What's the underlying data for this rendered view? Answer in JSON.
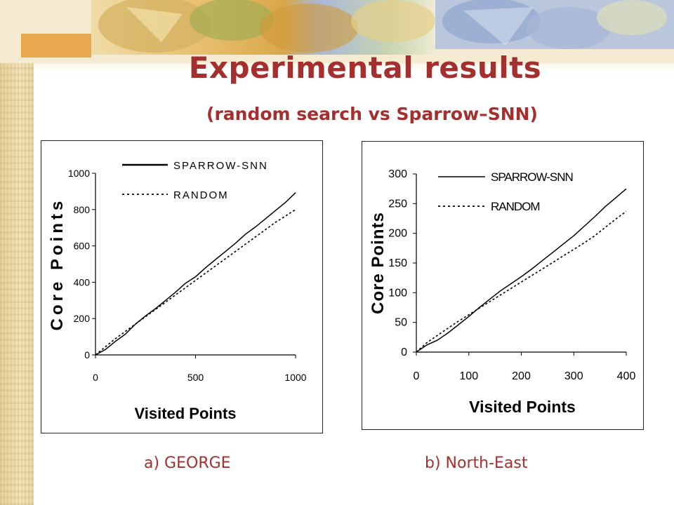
{
  "slide": {
    "title": "Experimental results",
    "subtitle": "(random search vs Sparrow–SNN)",
    "caption_a": "a) GEORGE",
    "caption_b": "b) North-East",
    "accent_color": "#a3302e"
  },
  "chart_data": [
    {
      "type": "line",
      "xlabel": "Visited Points",
      "ylabel": "Core Points",
      "xlim": [
        0,
        1000
      ],
      "ylim": [
        0,
        1000
      ],
      "x_ticks": [
        "0",
        "500",
        "1000"
      ],
      "y_ticks": [
        "0",
        "200",
        "400",
        "600",
        "800",
        "1000"
      ],
      "grid": false,
      "legend": "top-right",
      "series": [
        {
          "name": "SPARROW-SNN",
          "style": "solid",
          "x": [
            0,
            50,
            100,
            150,
            200,
            250,
            300,
            350,
            400,
            450,
            500,
            550,
            600,
            650,
            700,
            750,
            800,
            850,
            900,
            950,
            1000
          ],
          "values": [
            0,
            30,
            75,
            115,
            170,
            215,
            255,
            300,
            345,
            395,
            430,
            480,
            525,
            570,
            615,
            665,
            705,
            750,
            795,
            840,
            893
          ]
        },
        {
          "name": "RANDOM",
          "style": "dotted",
          "x": [
            0,
            50,
            100,
            150,
            200,
            250,
            300,
            350,
            400,
            450,
            500,
            550,
            600,
            650,
            700,
            750,
            800,
            850,
            900,
            950,
            1000
          ],
          "values": [
            0,
            45,
            90,
            130,
            170,
            210,
            250,
            290,
            330,
            370,
            410,
            450,
            490,
            530,
            570,
            610,
            650,
            690,
            730,
            765,
            800
          ]
        }
      ]
    },
    {
      "type": "line",
      "xlabel": "Visited Points",
      "ylabel": "Core Points",
      "xlim": [
        0,
        400
      ],
      "ylim": [
        0,
        300
      ],
      "x_ticks": [
        "0",
        "100",
        "200",
        "300",
        "400"
      ],
      "y_ticks": [
        "0",
        "50",
        "100",
        "150",
        "200",
        "250",
        "300"
      ],
      "grid": false,
      "legend": "top-right",
      "series": [
        {
          "name": "SPARROW-SNN",
          "style": "solid",
          "x": [
            0,
            20,
            40,
            60,
            80,
            100,
            120,
            140,
            160,
            180,
            200,
            220,
            240,
            260,
            280,
            300,
            320,
            340,
            360,
            380,
            400
          ],
          "values": [
            0,
            12,
            20,
            32,
            46,
            60,
            75,
            89,
            103,
            115,
            127,
            140,
            154,
            168,
            182,
            196,
            212,
            228,
            245,
            260,
            275
          ]
        },
        {
          "name": "RANDOM",
          "style": "dotted",
          "x": [
            0,
            20,
            40,
            60,
            80,
            100,
            120,
            140,
            160,
            180,
            200,
            220,
            240,
            260,
            280,
            300,
            320,
            340,
            360,
            380,
            400
          ],
          "values": [
            0,
            16,
            28,
            40,
            52,
            63,
            74,
            85,
            96,
            107,
            118,
            129,
            140,
            151,
            162,
            173,
            184,
            196,
            210,
            224,
            237
          ]
        }
      ]
    }
  ]
}
